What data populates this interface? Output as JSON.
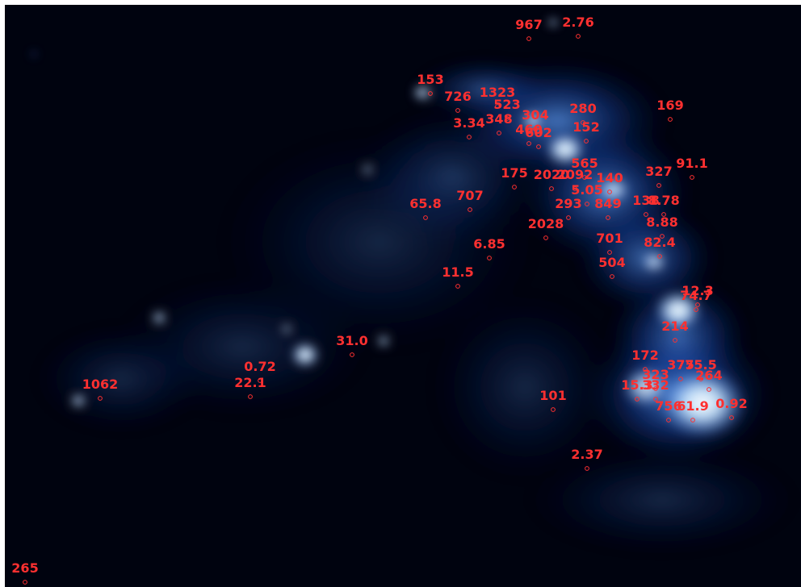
{
  "labels": [
    "967",
    "2.76",
    "153",
    "726",
    "1323",
    "523",
    "348",
    "304",
    "3.34",
    "460",
    "602",
    "280",
    "152",
    "169",
    "565",
    "327",
    "91.1",
    "175",
    "2020",
    "2092",
    "140",
    "5.05",
    "707",
    "65.8",
    "293",
    "849",
    "138",
    "8.78",
    "2028",
    "8.88",
    "6.85",
    "701",
    "82.4",
    "504",
    "11.5",
    "12.3",
    "74.7",
    "214",
    "31.0",
    "172",
    "375",
    "75.5",
    "0.72",
    "323",
    "264",
    "22.1",
    "1062",
    "15.3",
    "332",
    "101",
    "756",
    "61.9",
    "0.92",
    "2.37",
    "265"
  ]
}
